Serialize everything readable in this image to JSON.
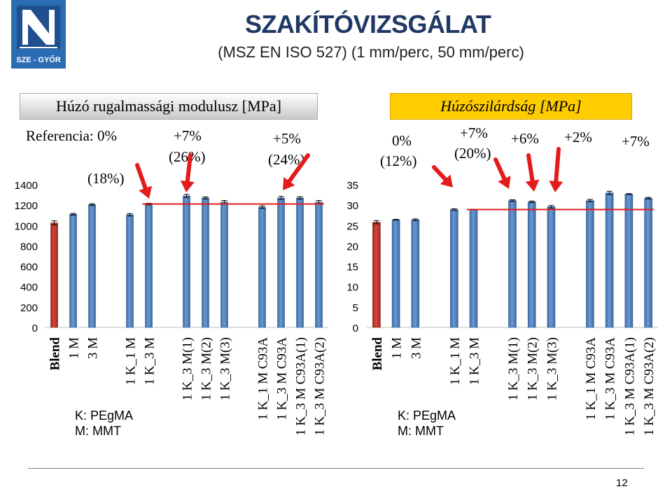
{
  "title": "SZAKÍTÓVIZSGÁLAT",
  "subtitle": "(MSZ EN ISO 527)  (1 mm/perc, 50 mm/perc)",
  "logo_text": "SZE - GYŐR",
  "colors": {
    "bar": "#4f81bd",
    "bar_ref": "#c0392b",
    "ref_line": "#e31b1b",
    "arrow": "#e31b1b",
    "title": "#1f3864",
    "band_right": "#ffcc00"
  },
  "left_panel": {
    "header": "Húzó rugalmassági modulusz [MPa]",
    "annotations": {
      "referencia": "Referencia: 0%",
      "p18": "(18%)",
      "p7": "+7%",
      "p26": "(26%)",
      "p5": "+5%",
      "p24": "(24%)"
    },
    "note_k": "K: PEgMA",
    "note_m": "M: MMT"
  },
  "right_panel": {
    "header": "Húzószilárdság [MPa]",
    "annotations": {
      "p0": "0%",
      "p12": "(12%)",
      "p7a": "+7%",
      "p20": "(20%)",
      "p6": "+6%",
      "p2": "+2%",
      "p7b": "+7%"
    },
    "note_k": "K: PEgMA",
    "note_m": "M: MMT"
  },
  "chart_data": [
    {
      "type": "bar",
      "title": "Húzó rugalmassági modulusz [MPa]",
      "ylim": [
        0,
        1400
      ],
      "yticks": [
        0,
        200,
        400,
        600,
        800,
        1000,
        1200,
        1400
      ],
      "grid": false,
      "categories": [
        "Blend",
        "1 M",
        "3 M",
        "",
        "1 K_1 M",
        "1 K_3 M",
        "",
        "1 K_3 M(1)",
        "1 K_3 M(2)",
        "1 K_3 M(3)",
        "",
        "1 K_1 M C93A",
        "1 K_3 M C93A",
        "1 K_3 M C93A(1)",
        "1 K_3 M C93A(2)"
      ],
      "values": [
        1025,
        1110,
        1205,
        null,
        1105,
        1210,
        null,
        1290,
        1270,
        1230,
        null,
        1180,
        1270,
        1270,
        1230
      ],
      "errors": [
        20,
        8,
        8,
        null,
        12,
        8,
        null,
        15,
        10,
        15,
        null,
        12,
        15,
        12,
        15
      ],
      "reference_line": 1210
    },
    {
      "type": "bar",
      "title": "Húzószilárdság [MPa]",
      "ylim": [
        0,
        35
      ],
      "yticks": [
        0,
        5,
        10,
        15,
        20,
        25,
        30,
        35
      ],
      "grid": false,
      "categories": [
        "Blend",
        "1 M",
        "3 M",
        "",
        "1 K_1 M",
        "1 K_3 M",
        "",
        "1 K_3 M(1)",
        "1 K_3 M(2)",
        "1 K_3 M(3)",
        "",
        "1 K_1 M C93A",
        "1 K_3 M C93A",
        "1 K_3 M C93A(1)",
        "1 K_3 M C93A(2)"
      ],
      "values": [
        25.8,
        26.4,
        26.4,
        null,
        28.9,
        28.9,
        null,
        31.1,
        30.8,
        29.6,
        null,
        31.1,
        33.0,
        32.7,
        31.7
      ],
      "errors": [
        0.4,
        0.1,
        0.2,
        null,
        0.2,
        0.1,
        null,
        0.2,
        0.2,
        0.3,
        null,
        0.3,
        0.4,
        0.1,
        0.2
      ],
      "reference_line": 28.9
    }
  ]
}
